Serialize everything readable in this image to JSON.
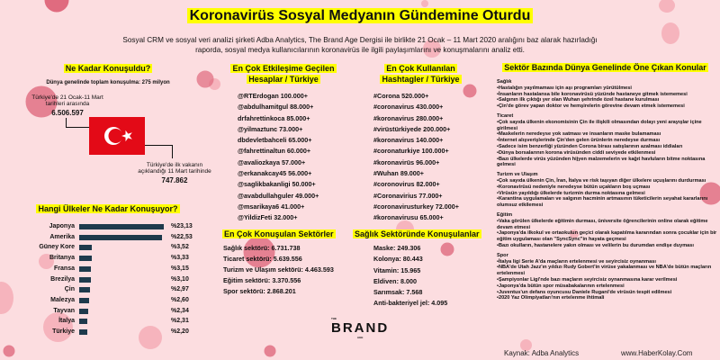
{
  "title": "Koronavirüs Sosyal Medyanın Gündemine Oturdu",
  "intro": "Sosyal CRM ve sosyal veri analizi şirketi Adba Analytics, The Brand Age Dergisi ile birlikte 21 Ocak – 11 Mart 2020 aralığını baz alarak hazırladığı raporda, sosyal medya kullanıcılarının koronavirüs ile ilgili paylaşımlarını ve konuşmalarını analiz etti.",
  "colors": {
    "background": "#fcdde0",
    "highlight": "#ffff00",
    "bar": "#1e3a4c",
    "flag": "#e30a17"
  },
  "talk": {
    "heading": "Ne Kadar Konuşuldu?",
    "world": "Dünya genelinde toplam konuşulma: 275 milyon",
    "tr_label": "Türkiye'de 21 Ocak-11 Mart tarihleri arasında",
    "tr_value": "6.506.597",
    "first_label": "Türkiye'de ilk vakanın açıklandığı 11 Mart tarihinde",
    "first_value": "747.862",
    "flag_icon": "turkey-flag"
  },
  "countries": {
    "heading": "Hangi Ülkeler Ne Kadar Konuşuyor?",
    "rows": [
      {
        "name": "Japonya",
        "value": 23.13,
        "label": "%23,13"
      },
      {
        "name": "Amerika",
        "value": 22.53,
        "label": "%22,53"
      },
      {
        "name": "Güney Kore",
        "value": 3.52,
        "label": "%3,52"
      },
      {
        "name": "Britanya",
        "value": 3.33,
        "label": "%3,33"
      },
      {
        "name": "Fransa",
        "value": 3.15,
        "label": "%3,15"
      },
      {
        "name": "Brezilya",
        "value": 3.1,
        "label": "%3,10"
      },
      {
        "name": "Çin",
        "value": 2.97,
        "label": "%2,97"
      },
      {
        "name": "Malezya",
        "value": 2.6,
        "label": "%2,60"
      },
      {
        "name": "Tayvan",
        "value": 2.34,
        "label": "%2,34"
      },
      {
        "name": "İtalya",
        "value": 2.31,
        "label": "%2,31"
      },
      {
        "name": "Türkiye",
        "value": 2.2,
        "label": "%2,20"
      }
    ]
  },
  "accounts": {
    "heading1": "En Çok Etkileşime Geçilen",
    "heading2": "Hesaplar / Türkiye",
    "items": [
      "@RTErdogan  100.000+",
      "@abdulhamitgul  88.000+",
      "drfahrettinkoca  85.000+",
      "@yilmaztunc  73.000+",
      "dbdevletbahceli  65.000+",
      "@fahrettinaltun  60.000+",
      "@avaliozkaya  57.000+",
      "@erkanakcay45  56.000+",
      "@saglikbakanligi  50.000+",
      "@avabdullahguler  49.000+",
      "@msarikaya6  41.000+",
      "@YildizFeti  32.000+"
    ]
  },
  "hashtags": {
    "heading1": "En Çok Kullanılan",
    "heading2": "Hashtagler / Türkiye",
    "items": [
      "#Corona  520.000+",
      "#coronavirus  430.000+",
      "#koronavirus  280.000+",
      "#virüstürkiyede  200.000+",
      "#koronavirus  140.000+",
      "#coronaturkiye  100.000+",
      "#koronavirüs  96.000+",
      "#Wuhan  89.000+",
      "#coronovirus  82.000+",
      "#Coronavirius  77.000+",
      "#coronavirusturkey  72.000+",
      "#koronavirusu  65.000+"
    ]
  },
  "sectors": {
    "heading": "En Çok Konuşulan Sektörler",
    "items": [
      "Sağlık sektörü: 6.731.738",
      "Ticaret sektörü: 5.639.556",
      "Turizm ve Ulaşım sektörü: 4.463.593",
      "Eğitim sektörü: 3.370.556",
      "Spor sektörü: 2.868.201"
    ]
  },
  "health": {
    "heading": "Sağlık Sektöründe Konuşulanlar",
    "items": [
      "Maske: 249.306",
      "Kolonya: 80.443",
      "Vitamin: 15.965",
      "Eldiven: 8.000",
      "Sarımsak: 7.568",
      "Anti-bakteriyel jel: 4.095"
    ]
  },
  "topics": {
    "heading": "Sektör Bazında Dünya Genelinde Öne Çıkan Konular",
    "categories": [
      {
        "name": "Sağlık",
        "items": [
          "•Hastalığın yayılmaması için aşı programları yürütülmesi",
          "•İnsanların hastalansa bile koronavirüsü yüzünde hastaneye gitmek istememesi",
          "•Salgının ilk çıktığı yer olan Wuhan şehrinde özel hastane kurulması",
          "•Çin'de görev yapan doktor ve hemşirelerin görevine devam etmek istememesi"
        ]
      },
      {
        "name": "Ticaret",
        "items": [
          "•Çok sayıda ülkenin ekonomisinin Çin ile ilişkili olmasından dolayı yeni arayışlar içine girilmesi",
          "•Maskelerin neredeyse yok satması ve insanların maske bulamaması",
          "•İnternet alışverişlerinde Çin'den gelen ürünlerin neredeyse durması",
          "•Sadece isim benzerliği yüzünden Corona birası satışlarının azalması iddiaları",
          "•Dünya borsalarının korona virüsünden ciddi seviyede etkilenmesi",
          "•Bazı ülkelerde virüs yüzünden hijyen malzemelerin ve kağıt havluların bitme noktasına gelmesi"
        ]
      },
      {
        "name": "Turizm ve Ulaşım",
        "items": [
          "•Çok sayıda ülkenin Çin, İran, İtalya ve risk taşıyan diğer ülkelere uçuşlarını durdurması",
          "•Koronavirüsü nedeniyle neredeyse bütün uçakların boş uçması",
          "•Virüsün yayıldığı ülkelerde turizmin durma noktasına gelmesi",
          "•Karantina uygulamaları ve salgının hacminin artmasının tüketicilerin seyahat kararlarını olumsuz etkilemesi"
        ]
      },
      {
        "name": "Eğitim",
        "items": [
          "•Vaka görülen ülkelerde eğitimin durması, üniversite öğrencilerinin online olarak eğitime devam etmesi",
          "•Japonya'da ilkokul ve ortaokulun geçici olarak kapatılma kararından sonra çocuklar için bir eğitim uygulaması olan \"SyncSync\"in hayata geçmesi",
          "•Bazı okulların, hastanelere yakın olması ve velilerin bu durumdan endişe duyması"
        ]
      },
      {
        "name": "Spor",
        "items": [
          "•İtalya ligi Serie A'da maçların ertelenmesi ve seyircisiz oynanması",
          "•NBA'de Utah Jazz'ın yıldızı Rudy Gobert'in virüse yakalanması ve NBA'de bütün maçların ertelenmesi",
          "•Şampiyonlar Ligi'nde bazı maçların seyircisiz oynanmasına karar verilmesi",
          "•Japonya'da bütün spor müsabakalarının ertelenmesi",
          "•Juventus'un defans oyuncusu Daniele Rugani'de virüsün tespit edilmesi",
          "•2020 Yaz Olimpiyatları'nın ertelenme ihtimali"
        ]
      }
    ]
  },
  "logo": {
    "the": "THE",
    "brand": "BRAND",
    "age": "AGE"
  },
  "footer": {
    "source": "Kaynak: Adba Analytics",
    "site": "www.HaberKolay.Com"
  }
}
